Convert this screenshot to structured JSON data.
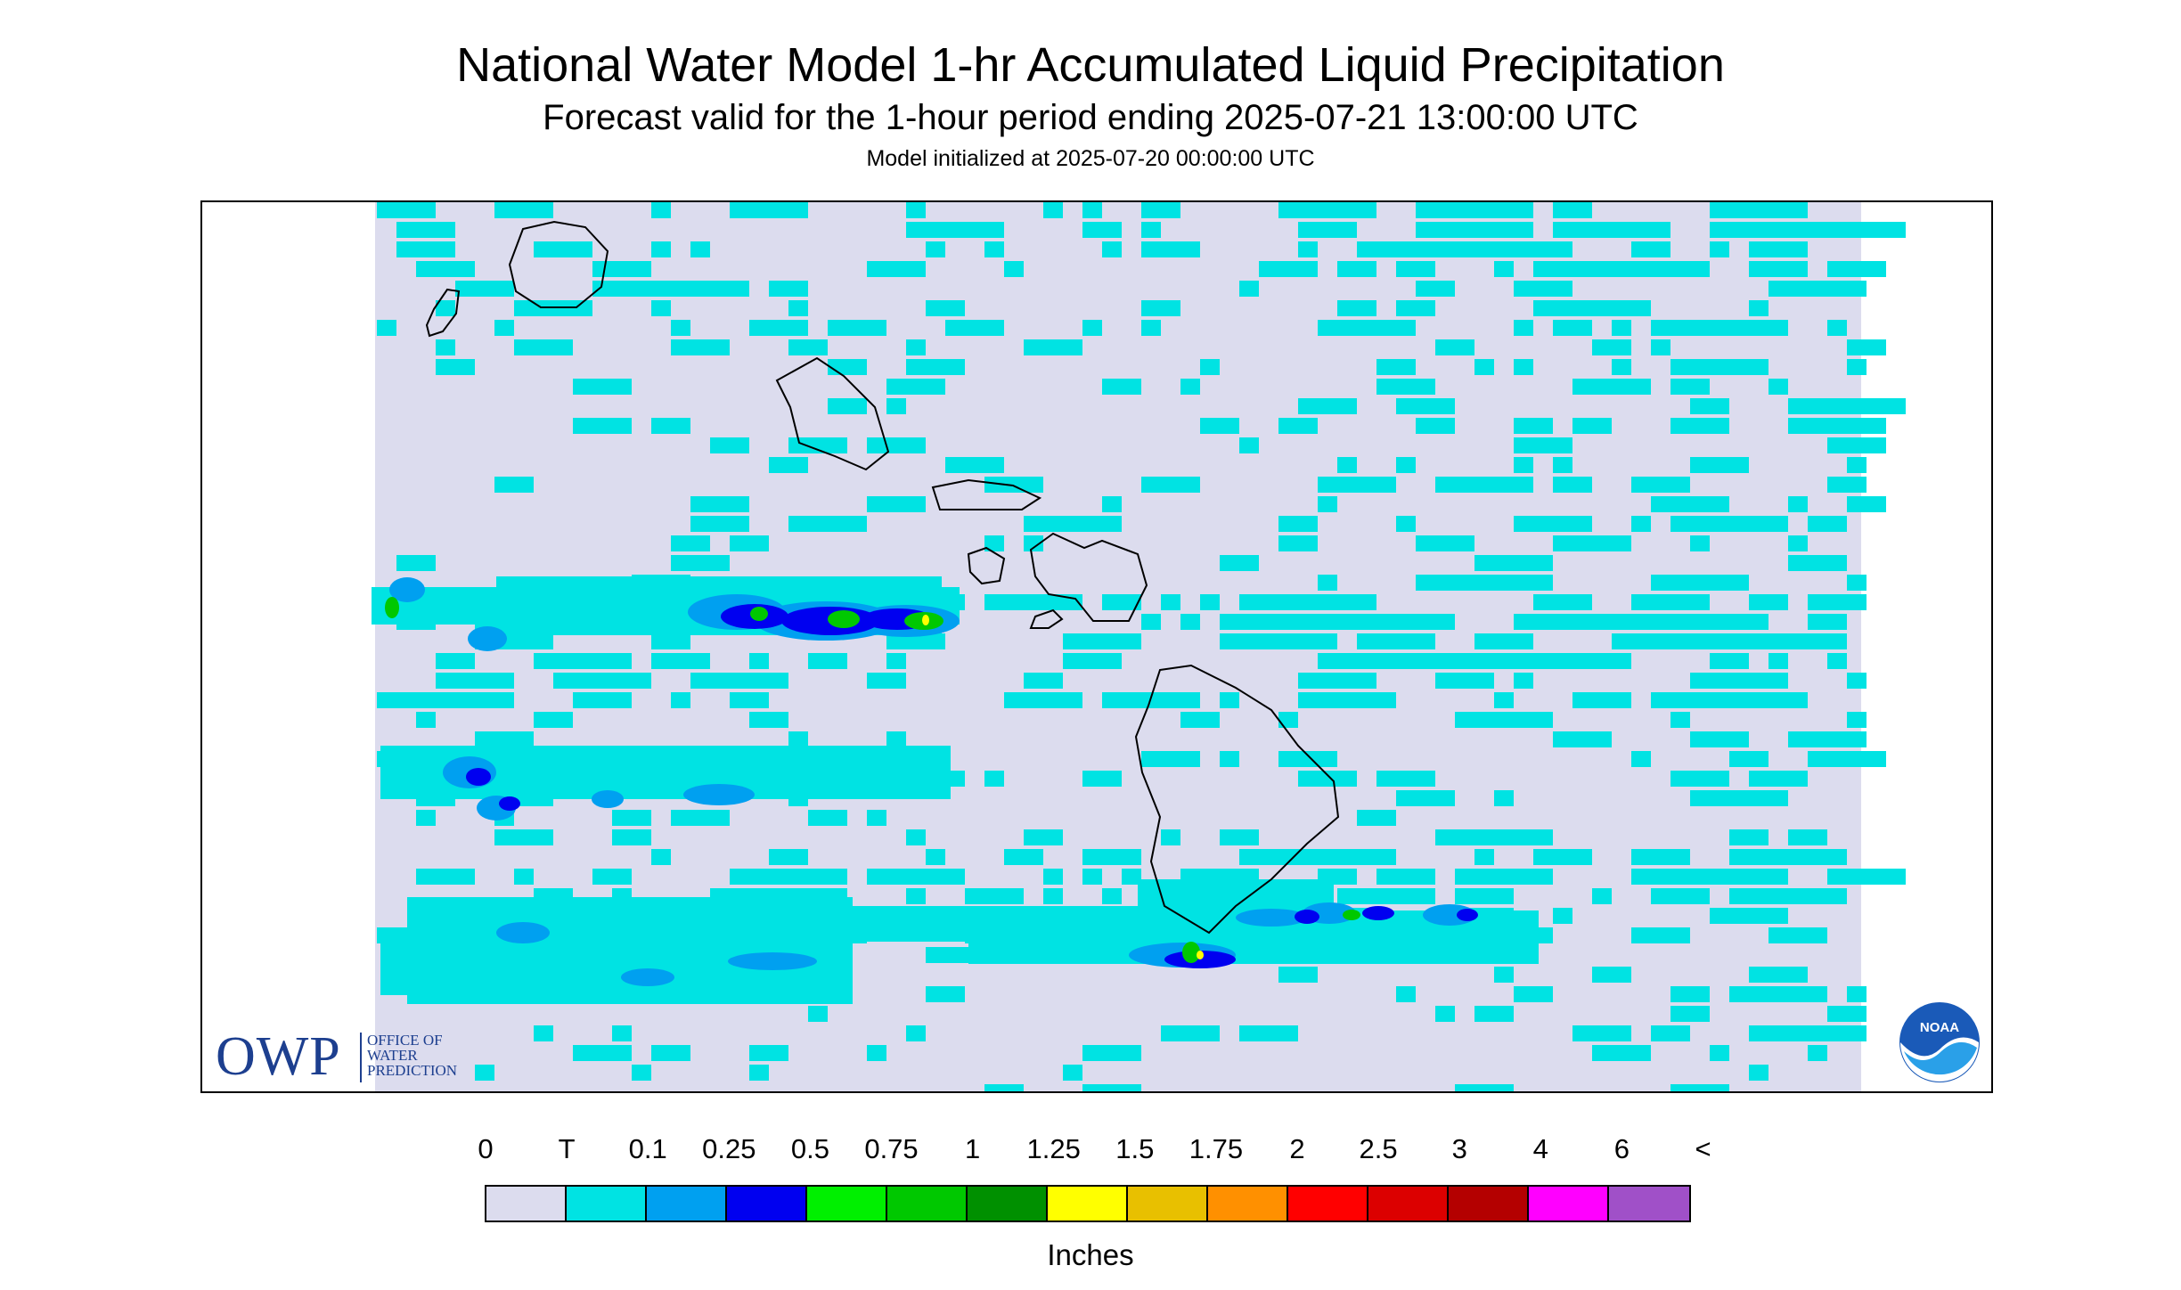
{
  "header": {
    "title": "National Water Model 1-hr Accumulated Liquid Precipitation",
    "subtitle": "Forecast valid for the 1-hour period ending 2025-07-21 13:00:00 UTC",
    "init_line": "Model initialized at 2025-07-20 00:00:00 UTC"
  },
  "map": {
    "background_color": "#dcdcee",
    "coastline_color": "#000000",
    "islands": [
      "Kauai",
      "Niihau",
      "Oahu",
      "Molokai",
      "Lanai",
      "Maui",
      "Kahoolawe",
      "Hawaii"
    ]
  },
  "logos": {
    "owp_letters": "OWP",
    "owp_line1": "OFFICE OF",
    "owp_line2": "WATER",
    "owp_line3": "PREDICTION",
    "noaa_text": "NOAA"
  },
  "legend": {
    "labels": [
      "0",
      "T",
      "0.1",
      "0.25",
      "0.5",
      "0.75",
      "1",
      "1.25",
      "1.5",
      "1.75",
      "2",
      "2.5",
      "3",
      "4",
      "6",
      "<"
    ],
    "colors": [
      "#dcdcee",
      "#00e3e3",
      "#00a0f0",
      "#0000f0",
      "#00f000",
      "#00c800",
      "#009000",
      "#ffff00",
      "#e8c000",
      "#ff9000",
      "#ff0000",
      "#dc0000",
      "#b40000",
      "#ff00ff",
      "#a050c8"
    ],
    "units": "Inches"
  }
}
